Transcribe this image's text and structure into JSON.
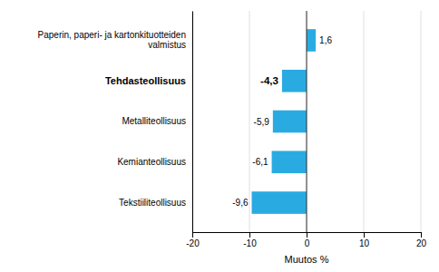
{
  "chart_data": {
    "type": "bar",
    "orientation": "horizontal",
    "categories": [
      "Tekstiiliteollisuus",
      "Kemianteollisuus",
      "Metalliteollisuus",
      "Tehdasteollisuus",
      "Paperin, paperi- ja kartonkituotteiden valmistus"
    ],
    "values": [
      -9.6,
      -6.1,
      -5.9,
      -4.3,
      1.6
    ],
    "value_labels": [
      "-9,6",
      "-6,1",
      "-5,9",
      "-4,3",
      "1,6"
    ],
    "data_labels": true,
    "color": "#29abe2",
    "xlabel": "Muutos %",
    "xlim": [
      -20,
      20
    ],
    "xticks": [
      -20,
      -10,
      0,
      10,
      20
    ],
    "grid": true
  }
}
